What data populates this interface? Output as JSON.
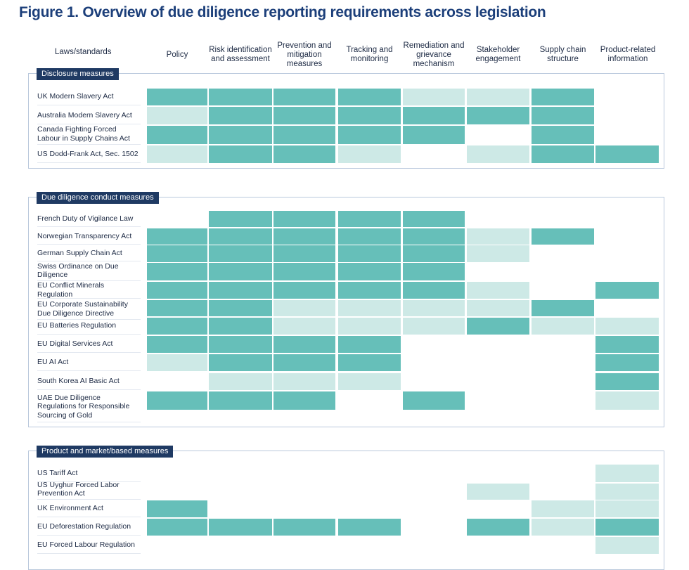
{
  "title": "Figure 1. Overview of due diligence reporting requirements across legislation",
  "columns": [
    "Laws/standards",
    "Policy",
    "Risk identification and assessment",
    "Prevention and mitigation measures",
    "Tracking and monitoring",
    "Remediation and grievance mechanism",
    "Stakeholder engagement",
    "Supply chain structure",
    "Product-related information"
  ],
  "colors": {
    "full": "#66bfb9",
    "partial": "#cde9e6",
    "section_label_bg": "#1f3a63",
    "title": "#1c3f7a"
  },
  "cell_codes": {
    "F": "dark teal fill",
    "P": "light teal fill",
    "-": "no fill"
  },
  "sections": [
    {
      "label": "Disclosure measures",
      "rows": [
        {
          "law": "UK Modern Slavery Act",
          "cells": [
            "F",
            "F",
            "F",
            "F",
            "P",
            "P",
            "F",
            "-"
          ]
        },
        {
          "law": "Australia Modern Slavery Act",
          "cells": [
            "P",
            "F",
            "F",
            "F",
            "F",
            "F",
            "F",
            "-"
          ]
        },
        {
          "law": "Canada Fighting Forced Labour in Supply Chains Act",
          "cells": [
            "F",
            "F",
            "F",
            "F",
            "F",
            "-",
            "F",
            "-"
          ]
        },
        {
          "law": "US Dodd-Frank Act, Sec. 1502",
          "cells": [
            "P",
            "F",
            "F",
            "P",
            "-",
            "P",
            "F",
            "F"
          ]
        }
      ]
    },
    {
      "label": "Due diligence  conduct measures",
      "rows": [
        {
          "law": "French Duty of Vigilance Law",
          "cells": [
            "-",
            "F",
            "F",
            "F",
            "F",
            "-",
            "-",
            "-"
          ]
        },
        {
          "law": "Norwegian Transparency Act",
          "cells": [
            "F",
            "F",
            "F",
            "F",
            "F",
            "P",
            "F",
            "-"
          ]
        },
        {
          "law": "German Supply Chain Act",
          "cells": [
            "F",
            "F",
            "F",
            "F",
            "F",
            "P",
            "-",
            "-"
          ]
        },
        {
          "law": "Swiss Ordinance on Due Diligence",
          "cells": [
            "F",
            "F",
            "F",
            "F",
            "F",
            "-",
            "-",
            "-"
          ]
        },
        {
          "law": "EU Conflict Minerals Regulation",
          "cells": [
            "F",
            "F",
            "F",
            "F",
            "F",
            "P",
            "-",
            "F"
          ]
        },
        {
          "law": "EU Corporate Sustainability Due Diligence Directive",
          "cells": [
            "F",
            "F",
            "P",
            "P",
            "P",
            "P",
            "F",
            "-"
          ]
        },
        {
          "law": "EU Batteries Regulation",
          "cells": [
            "F",
            "F",
            "P",
            "P",
            "P",
            "F",
            "P",
            "P"
          ]
        },
        {
          "law": "EU Digital Services Act",
          "cells": [
            "F",
            "F",
            "F",
            "F",
            "-",
            "-",
            "-",
            "F"
          ]
        },
        {
          "law": "EU AI Act",
          "cells": [
            "P",
            "F",
            "F",
            "F",
            "-",
            "-",
            "-",
            "F"
          ]
        },
        {
          "law": "South Korea AI Basic Act",
          "cells": [
            "-",
            "P",
            "P",
            "P",
            "-",
            "-",
            "-",
            "F"
          ]
        },
        {
          "law": "UAE Due Diligence Regulations for Responsible Sourcing of Gold",
          "cells": [
            "F",
            "F",
            "F",
            "-",
            "F",
            "-",
            "-",
            "P"
          ]
        }
      ]
    },
    {
      "label": "Product and market/based measures",
      "rows": [
        {
          "law": "US Tariff Act",
          "cells": [
            "-",
            "-",
            "-",
            "-",
            "-",
            "-",
            "-",
            "P"
          ]
        },
        {
          "law": "US Uyghur Forced Labor Prevention Act",
          "cells": [
            "-",
            "-",
            "-",
            "-",
            "-",
            "P",
            "-",
            "P"
          ]
        },
        {
          "law": "UK Environment Act",
          "cells": [
            "F",
            "-",
            "-",
            "-",
            "-",
            "-",
            "P",
            "P"
          ]
        },
        {
          "law": "EU Deforestation Regulation",
          "cells": [
            "F",
            "F",
            "F",
            "F",
            "-",
            "F",
            "P",
            "F"
          ]
        },
        {
          "law": "EU Forced Labour Regulation",
          "cells": [
            "-",
            "-",
            "-",
            "-",
            "-",
            "-",
            "-",
            "P"
          ]
        }
      ]
    }
  ]
}
